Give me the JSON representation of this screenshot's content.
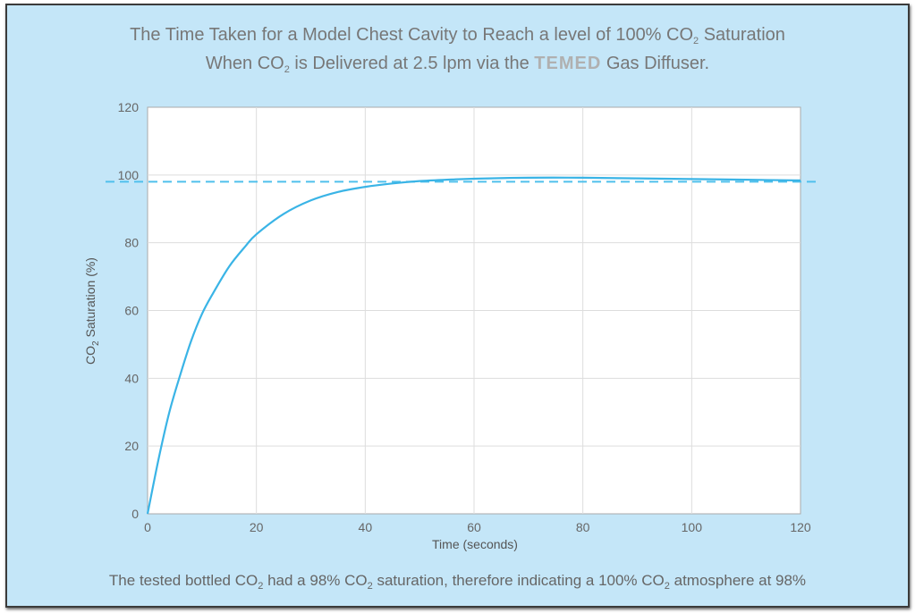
{
  "title": {
    "line1": [
      {
        "t": "The Time Taken for a Model Chest Cavity to Reach a level of 100% CO"
      },
      {
        "sub": "2"
      },
      {
        "t": " Saturation"
      }
    ],
    "line2": [
      {
        "t": "When CO"
      },
      {
        "sub": "2"
      },
      {
        "t": " is Delivered at 2.5 lpm via the "
      },
      {
        "brand": "TEMED"
      },
      {
        "t": " Gas Diffuser."
      }
    ]
  },
  "note": [
    {
      "t": "The tested bottled CO"
    },
    {
      "sub": "2"
    },
    {
      "t": " had a 98% CO"
    },
    {
      "sub": "2"
    },
    {
      "t": " saturation, therefore indicating a 100% CO"
    },
    {
      "sub": "2"
    },
    {
      "t": " atmosphere at 98%"
    }
  ],
  "chart_data": {
    "type": "line",
    "xlabel": "Time (seconds)",
    "ylabel": "CO2 Saturation (%)",
    "xlim": [
      0,
      120
    ],
    "ylim": [
      0,
      120
    ],
    "xticks": [
      "0",
      "20",
      "40",
      "60",
      "80",
      "100",
      "120"
    ],
    "yticks": [
      "0",
      "20",
      "40",
      "60",
      "80",
      "100",
      "120"
    ],
    "grid": true,
    "series": [
      {
        "color": "#3ab4e6",
        "x": [
          0,
          2,
          4,
          6,
          8,
          10,
          12,
          15,
          18,
          20,
          25,
          30,
          35,
          40,
          45,
          50,
          55,
          60,
          70,
          80,
          90,
          100,
          110,
          120
        ],
        "y": [
          0,
          16,
          30,
          41,
          51,
          59,
          65,
          73,
          79,
          82.5,
          88.5,
          92.5,
          95,
          96.5,
          97.5,
          98.2,
          98.6,
          98.9,
          99.2,
          99.2,
          99,
          98.8,
          98.6,
          98.4
        ]
      }
    ],
    "reference_line": {
      "y": 98,
      "style": "dashed",
      "color": "#4fc0ec"
    }
  }
}
